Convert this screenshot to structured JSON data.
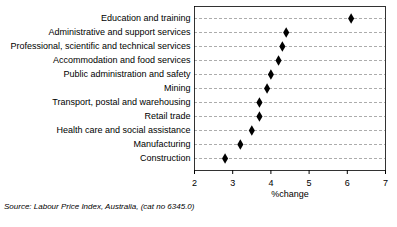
{
  "chart_data": {
    "type": "dot",
    "orientation": "horizontal",
    "categories": [
      "Education and training",
      "Administrative and support services",
      "Professional, scientific and technical services",
      "Accommodation and food services",
      "Public administration and safety",
      "Mining",
      "Transport, postal and warehousing",
      "Retail trade",
      "Health care and social assistance",
      "Manufacturing",
      "Construction"
    ],
    "values": [
      6.1,
      4.4,
      4.3,
      4.2,
      4.0,
      3.9,
      3.7,
      3.7,
      3.5,
      3.2,
      2.8
    ],
    "xlabel": "%change",
    "xlim": [
      2,
      7
    ],
    "xticks": [
      2,
      3,
      4,
      5,
      6,
      7
    ],
    "grid": true,
    "marker": "diamond",
    "color": "#000000",
    "caption": "Source: Labour Price Index, Australia, (cat no 6345.0)"
  }
}
